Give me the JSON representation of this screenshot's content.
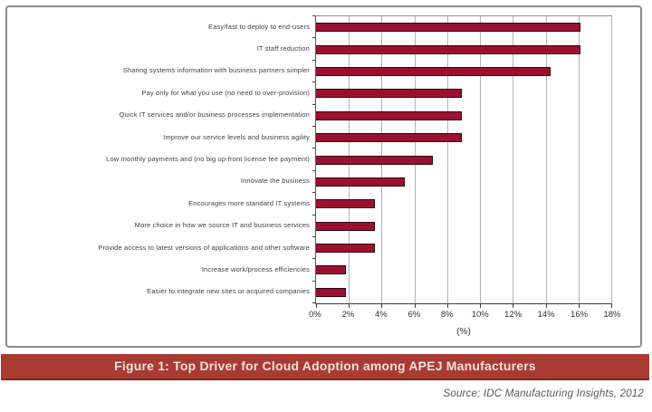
{
  "figure": {
    "title": "Figure 1: Top Driver for Cloud Adoption among APEJ Manufacturers",
    "source": "Source: IDC Manufacturing Insights, 2012",
    "banner_color": "#a93b32",
    "banner_text_color": "#f3e2de"
  },
  "chart_data": {
    "type": "bar",
    "orientation": "horizontal",
    "title": "Figure 1: Top Driver for Cloud Adoption among APEJ Manufacturers",
    "categories": [
      "Easy/fast to deploy to end-users",
      "IT staff reduction",
      "Sharing systems information with business partners simpler",
      "Pay only for what you use (no need to over-provision)",
      "Quick IT services and/or business processes implementation",
      "Improve our service levels and business agility",
      "Low monthly payments and (no big up-front license fee payment)",
      "Innovate the business",
      "Encourages more standard IT systems",
      "More choice in how we source IT and business services",
      "Provide access to latest versions of applications and other software",
      "Increase work/process efficiencies",
      "Easier to integrate new sites or acquired companies"
    ],
    "values": [
      16.1,
      16.1,
      14.3,
      8.9,
      8.9,
      8.9,
      7.1,
      5.4,
      3.6,
      3.6,
      3.6,
      1.8,
      1.8
    ],
    "xlabel": "(%)",
    "x_ticks": [
      "0%",
      "2%",
      "4%",
      "6%",
      "8%",
      "10%",
      "12%",
      "14%",
      "16%",
      "18%"
    ],
    "xlim": [
      0,
      18
    ],
    "grid": true,
    "legend": "none",
    "bar_color": "#9a1130",
    "bar_border_color": "#2d0712",
    "grid_color": "#b3b3b3"
  }
}
